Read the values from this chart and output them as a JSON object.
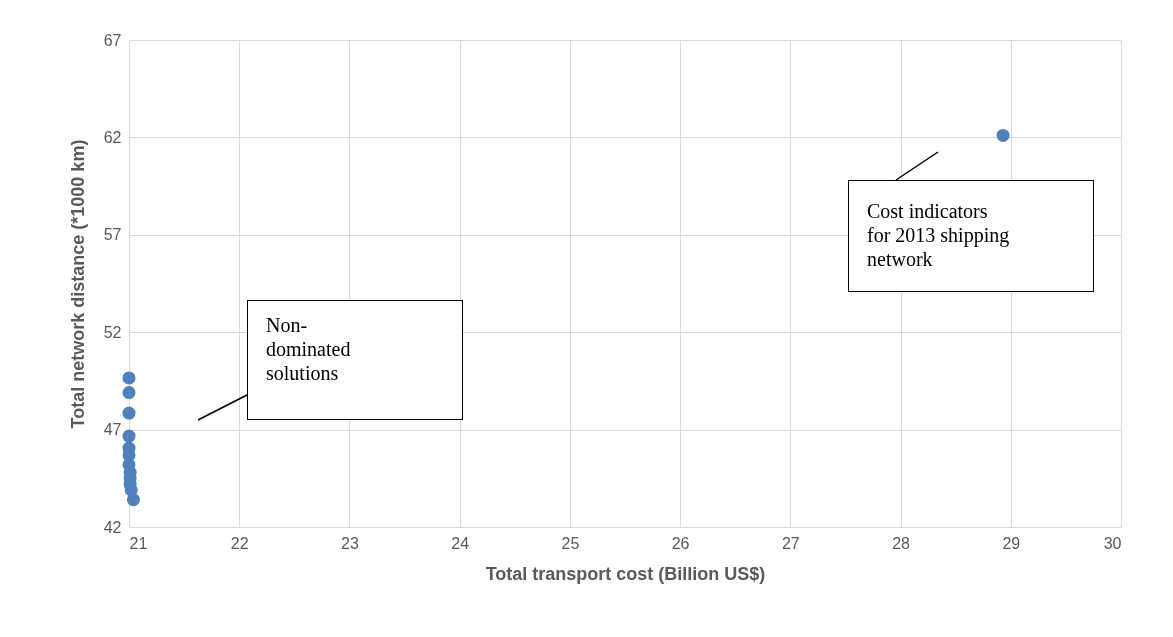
{
  "chart_data": {
    "type": "scatter",
    "xlabel": "Total transport cost (Billion US$)",
    "ylabel": "Total network distance (*1000 km)",
    "series": [
      {
        "color": "#4f81bd",
        "x": [
          21.0,
          21.0,
          21.0,
          21.0,
          21.0,
          21.0,
          21.0,
          21.01,
          21.01,
          21.01,
          21.02,
          21.04,
          28.93
        ],
        "values": [
          49.65,
          48.9,
          47.85,
          46.67,
          46.05,
          45.7,
          45.2,
          44.8,
          44.5,
          44.2,
          43.9,
          43.4,
          62.1
        ]
      }
    ],
    "xlim": [
      21,
      30
    ],
    "xticks": [
      21,
      22,
      23,
      24,
      25,
      26,
      27,
      28,
      29,
      30
    ],
    "ylim": [
      42,
      67
    ],
    "yticks": [
      42,
      47,
      52,
      57,
      62,
      67
    ],
    "grid": true,
    "marker": "circle",
    "legend": false,
    "annotations": [
      "Non-dominated solutions",
      "Cost indicators for 2013 shipping network"
    ]
  }
}
